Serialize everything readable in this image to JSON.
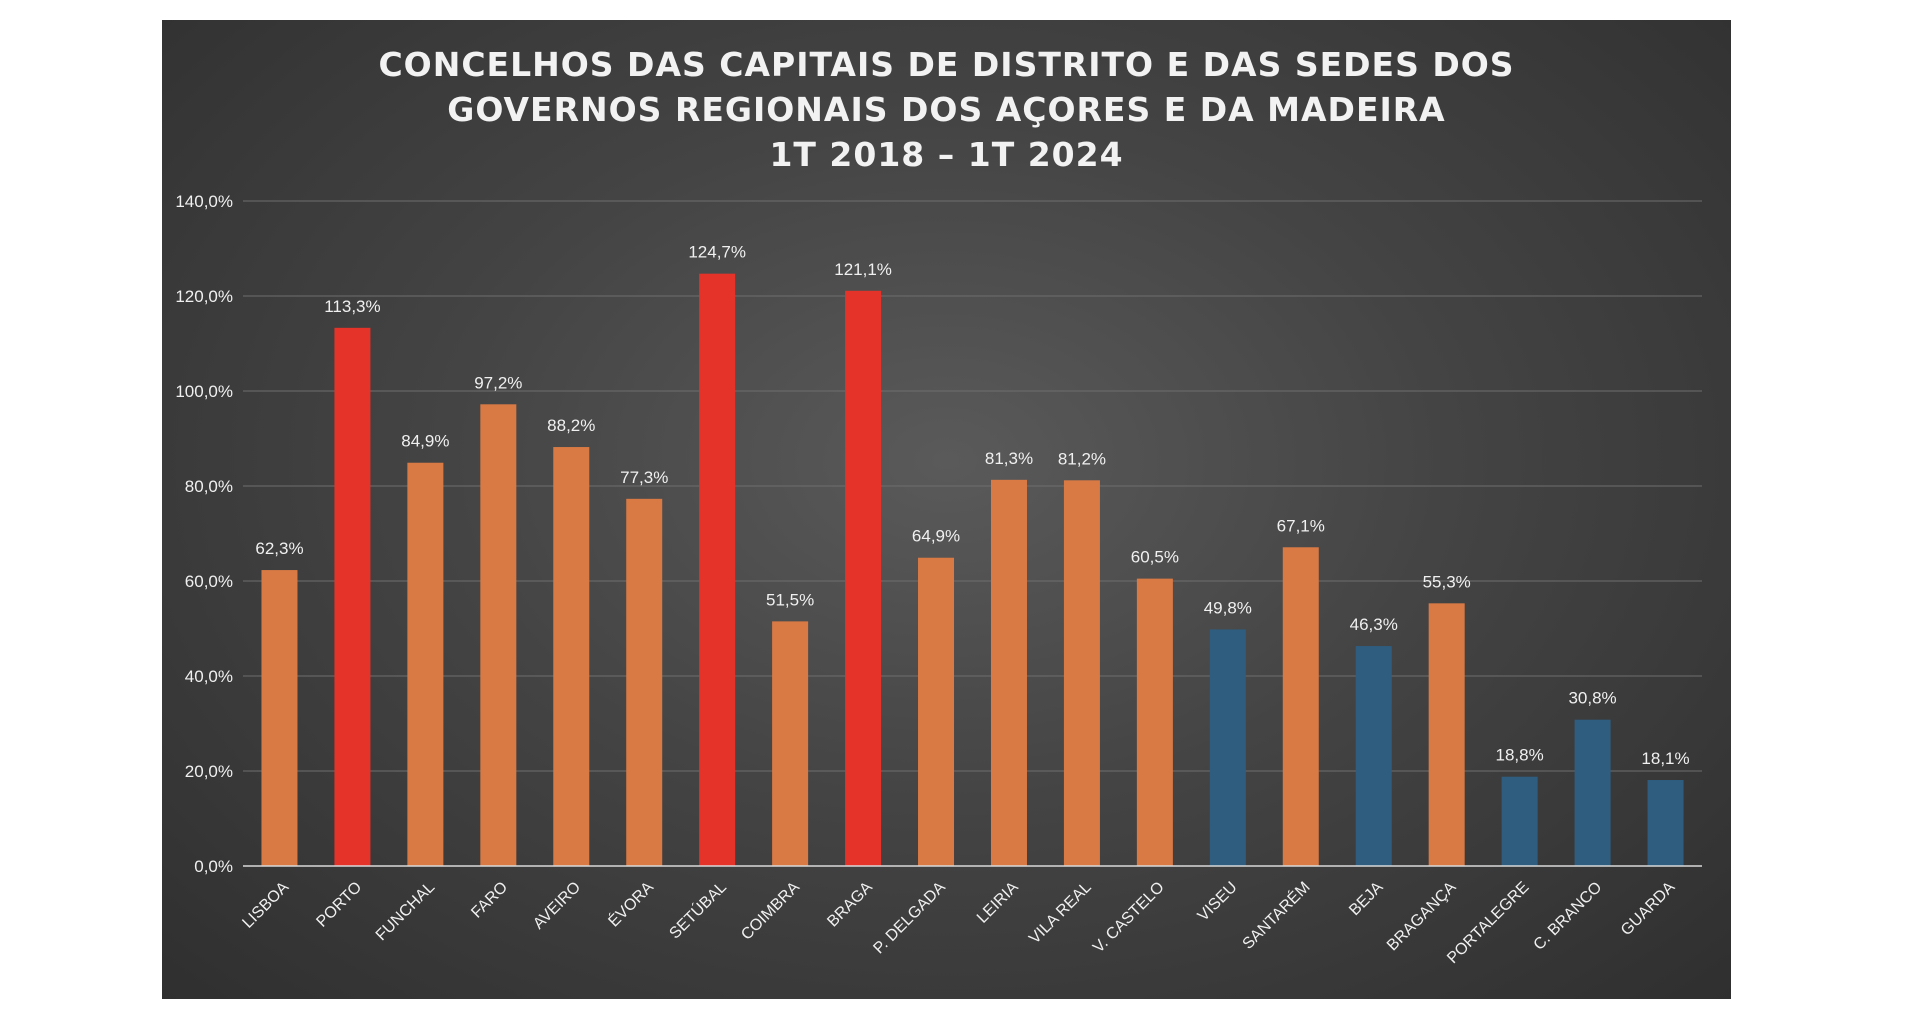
{
  "chart_data": {
    "type": "bar",
    "title": [
      "CONCELHOS DAS CAPITAIS DE DISTRITO E DAS SEDES DOS",
      "GOVERNOS REGIONAIS DOS AÇORES E DA MADEIRA",
      "1T 2018 – 1T 2024"
    ],
    "categories": [
      "LISBOA",
      "PORTO",
      "FUNCHAL",
      "FARO",
      "AVEIRO",
      "ÉVORA",
      "SETÚBAL",
      "COIMBRA",
      "BRAGA",
      "P. DELGADA",
      "LEIRIA",
      "VILA REAL",
      "V. CASTELO",
      "VISEU",
      "SANTARÉM",
      "BEJA",
      "BRAGANÇA",
      "PORTALEGRE",
      "C. BRANCO",
      "GUARDA"
    ],
    "values": [
      62.3,
      113.3,
      84.9,
      97.2,
      88.2,
      77.3,
      124.7,
      51.5,
      121.1,
      64.9,
      81.3,
      81.2,
      60.5,
      49.8,
      67.1,
      46.3,
      55.3,
      18.8,
      30.8,
      18.1
    ],
    "data_labels": [
      "62,3%",
      "113,3%",
      "84,9%",
      "97,2%",
      "88,2%",
      "77,3%",
      "124,7%",
      "51,5%",
      "121,1%",
      "64,9%",
      "81,3%",
      "81,2%",
      "60,5%",
      "49,8%",
      "67,1%",
      "46,3%",
      "55,3%",
      "18,8%",
      "30,8%",
      "18,1%"
    ],
    "bar_color_groups": [
      "orange",
      "red",
      "orange",
      "orange",
      "orange",
      "orange",
      "red",
      "orange",
      "red",
      "orange",
      "orange",
      "orange",
      "orange",
      "blue",
      "orange",
      "blue",
      "orange",
      "blue",
      "blue",
      "blue"
    ],
    "colors": {
      "orange": "#d97a45",
      "red": "#e5332a",
      "blue": "#2f5d80"
    },
    "ylim": [
      0,
      140
    ],
    "y_ticks": [
      0,
      20,
      40,
      60,
      80,
      100,
      120,
      140
    ],
    "y_tick_labels": [
      "0,0%",
      "20,0%",
      "40,0%",
      "60,0%",
      "80,0%",
      "100,0%",
      "120,0%",
      "140,0%"
    ],
    "grid": true,
    "legend": "none",
    "xlabel": "",
    "ylabel": ""
  }
}
